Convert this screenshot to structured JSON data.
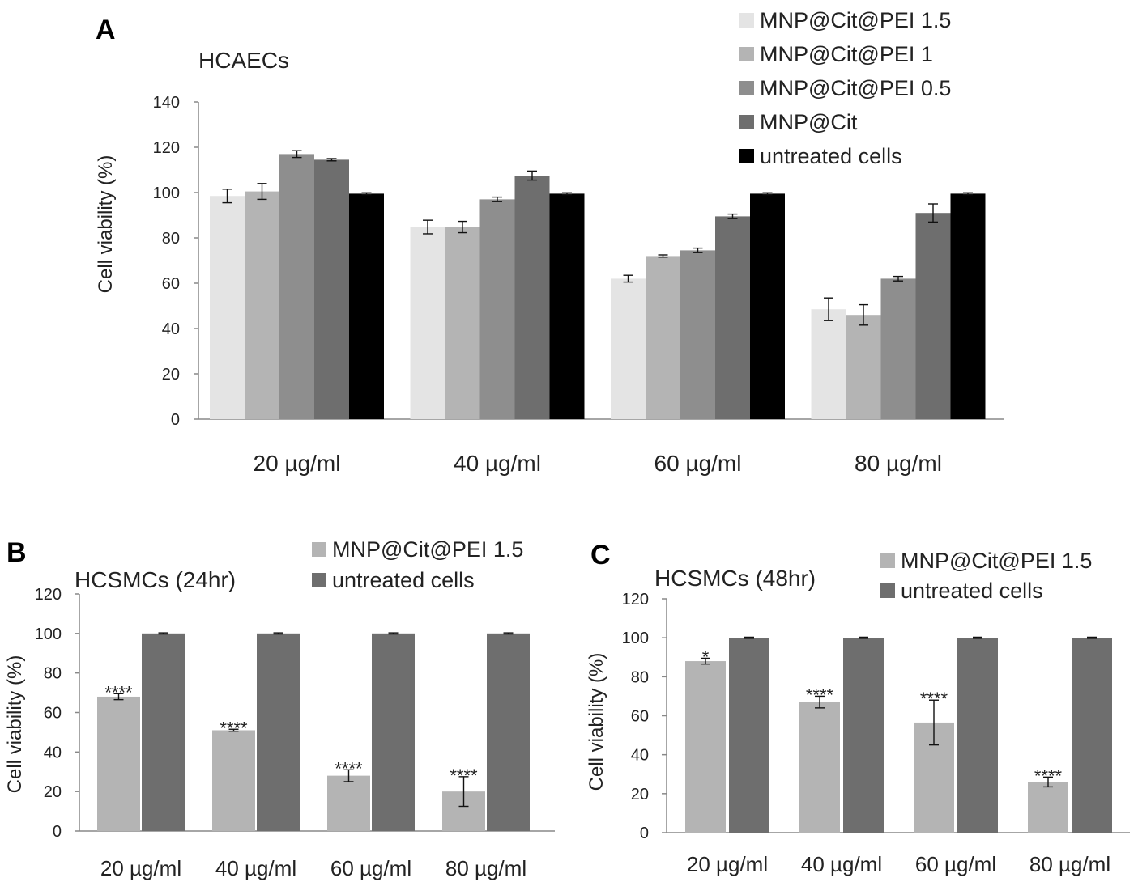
{
  "chart_data": [
    {
      "panel": "A",
      "type": "bar",
      "title": "HCAECs",
      "ylabel": "Cell viability (%)",
      "xlabel": "",
      "ylim": [
        0,
        140
      ],
      "yticks": [
        0,
        20,
        40,
        60,
        80,
        100,
        120,
        140
      ],
      "categories": [
        "20 µg/ml",
        "40 µg/ml",
        "60 µg/ml",
        "80 µg/ml"
      ],
      "legend_position": "top-right",
      "grid": false,
      "series": [
        {
          "name": "MNP@Cit@PEI 1.5",
          "color": "#e4e4e4",
          "values": [
            98.5,
            84.8,
            62,
            48.5
          ],
          "errors": [
            3,
            3,
            1.5,
            5
          ]
        },
        {
          "name": "MNP@Cit@PEI 1",
          "color": "#b4b4b4",
          "values": [
            100.5,
            84.8,
            72,
            46
          ],
          "errors": [
            3.5,
            2.5,
            0.5,
            4.5
          ]
        },
        {
          "name": "MNP@Cit@PEI 0.5",
          "color": "#8e8e8e",
          "values": [
            117,
            97,
            74.5,
            62
          ],
          "errors": [
            1.5,
            1,
            1,
            1
          ]
        },
        {
          "name": "MNP@Cit",
          "color": "#6e6e6e",
          "values": [
            114.5,
            107.5,
            89.5,
            91
          ],
          "errors": [
            0.5,
            2,
            1,
            4
          ]
        },
        {
          "name": "untreated cells",
          "color": "#000000",
          "values": [
            99.5,
            99.5,
            99.5,
            99.5
          ],
          "errors": [
            0.4,
            0.4,
            0.4,
            0.4
          ]
        }
      ]
    },
    {
      "panel": "B",
      "type": "bar",
      "title": "HCSMCs (24hr)",
      "ylabel": "Cell viability (%)",
      "xlabel": "",
      "ylim": [
        0,
        120
      ],
      "yticks": [
        0,
        20,
        40,
        60,
        80,
        100,
        120
      ],
      "categories": [
        "20 µg/ml",
        "40 µg/ml",
        "60 µg/ml",
        "80 µg/ml"
      ],
      "legend_position": "top-right",
      "grid": false,
      "series": [
        {
          "name": "MNP@Cit@PEI 1.5",
          "color": "#b4b4b4",
          "values": [
            68,
            51,
            28,
            20
          ],
          "errors": [
            1.5,
            0.5,
            3,
            7.5
          ],
          "significance": [
            "****",
            "****",
            "****",
            "****"
          ]
        },
        {
          "name": "untreated cells",
          "color": "#6e6e6e",
          "values": [
            100,
            100,
            100,
            100
          ],
          "errors": [
            0.3,
            0.3,
            0.3,
            0.3
          ],
          "significance": [
            "",
            "",
            "",
            ""
          ]
        }
      ]
    },
    {
      "panel": "C",
      "type": "bar",
      "title": "HCSMCs (48hr)",
      "ylabel": "Cell viability (%)",
      "xlabel": "",
      "ylim": [
        0,
        120
      ],
      "yticks": [
        0,
        20,
        40,
        60,
        80,
        100,
        120
      ],
      "categories": [
        "20 µg/ml",
        "40 µg/ml",
        "60 µg/ml",
        "80 µg/ml"
      ],
      "legend_position": "top-right",
      "grid": false,
      "series": [
        {
          "name": "MNP@Cit@PEI 1.5",
          "color": "#b4b4b4",
          "values": [
            88,
            67,
            56.5,
            26
          ],
          "errors": [
            1.5,
            3,
            11.5,
            2.5
          ],
          "significance": [
            "*",
            "****",
            "****",
            "****"
          ]
        },
        {
          "name": "untreated cells",
          "color": "#6e6e6e",
          "values": [
            100,
            100,
            100,
            100
          ],
          "errors": [
            0.3,
            0.3,
            0.3,
            0.3
          ],
          "significance": [
            "",
            "",
            "",
            ""
          ]
        }
      ]
    }
  ]
}
